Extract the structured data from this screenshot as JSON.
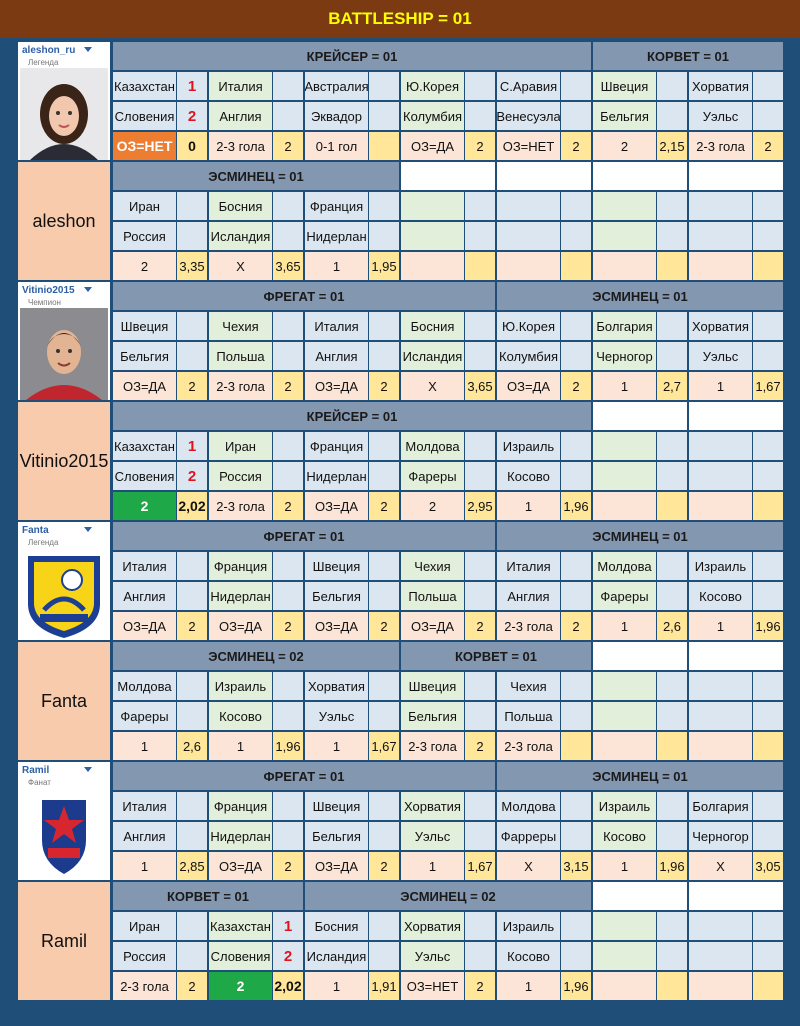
{
  "header": {
    "title": "BATTLESHIP = 01"
  },
  "players": [
    {
      "username": "aleshon_ru",
      "status": "Легенда",
      "name": "aleshon",
      "halves": [
        {
          "groups": [
            {
              "title": "КРЕЙСЕР = 01",
              "matches": [
                {
                  "home": "Казахстан",
                  "home_score": "1",
                  "away": "Словения",
                  "away_score": "2",
                  "bet": "ОЗ=НЕТ",
                  "odds": "0",
                  "bet_color": "#ed7d31"
                },
                {
                  "home": "Италия",
                  "away": "Англия",
                  "bet": "2-3 гола",
                  "odds": "2"
                },
                {
                  "home": "Австралия",
                  "away": "Эквадор",
                  "bet": "0-1 гол"
                },
                {
                  "home": "Ю.Корея",
                  "away": "Колумбия",
                  "bet": "ОЗ=ДА",
                  "odds": "2"
                },
                {
                  "home": "С.Аравия",
                  "away": "Венесуэла",
                  "bet": "ОЗ=НЕТ",
                  "odds": "2"
                }
              ]
            },
            {
              "title": "КОРВЕТ = 01",
              "matches": [
                {
                  "home": "Швеция",
                  "away": "Бельгия",
                  "bet": "2",
                  "odds": "2,15"
                },
                {
                  "home": "Хорватия",
                  "away": "Уэльс",
                  "bet": "2-3 гола",
                  "odds": "2"
                }
              ]
            }
          ]
        },
        {
          "groups": [
            {
              "title": "ЭСМИНЕЦ = 01",
              "matches": [
                {
                  "home": "Иран",
                  "away": "Россия",
                  "bet": "2",
                  "odds": "3,35"
                },
                {
                  "home": "Босния",
                  "away": "Исландия",
                  "bet": "X",
                  "odds": "3,65"
                },
                {
                  "home": "Франция",
                  "away": "Нидерлан",
                  "bet": "1",
                  "odds": "1,95"
                }
              ]
            }
          ]
        }
      ]
    },
    {
      "username": "Vitinio2015",
      "status": "Чемпион",
      "name": "Vitinio2015",
      "halves": [
        {
          "groups": [
            {
              "title": "ФРЕГАТ = 01",
              "matches": [
                {
                  "home": "Швеция",
                  "away": "Бельгия",
                  "bet": "ОЗ=ДА",
                  "odds": "2"
                },
                {
                  "home": "Чехия",
                  "away": "Польша",
                  "bet": "2-3 гола",
                  "odds": "2"
                },
                {
                  "home": "Италия",
                  "away": "Англия",
                  "bet": "ОЗ=ДА",
                  "odds": "2"
                },
                {
                  "home": "Босния",
                  "away": "Исландия",
                  "bet": "X",
                  "odds": "3,65"
                }
              ]
            },
            {
              "title": "ЭСМИНЕЦ = 01",
              "matches": [
                {
                  "home": "Ю.Корея",
                  "away": "Колумбия",
                  "bet": "ОЗ=ДА",
                  "odds": "2"
                },
                {
                  "home": "Болгария",
                  "away": "Черногор",
                  "bet": "1",
                  "odds": "2,7"
                },
                {
                  "home": "Хорватия",
                  "away": "Уэльс",
                  "bet": "1",
                  "odds": "1,67"
                }
              ]
            }
          ]
        },
        {
          "groups": [
            {
              "title": "КРЕЙСЕР = 01",
              "matches": [
                {
                  "home": "Казахстан",
                  "home_score": "1",
                  "away": "Словения",
                  "away_score": "2",
                  "bet": "2",
                  "odds": "2,02",
                  "bet_color": "#1fa847"
                },
                {
                  "home": "Иран",
                  "away": "Россия",
                  "bet": "2-3 гола",
                  "odds": "2"
                },
                {
                  "home": "Франция",
                  "away": "Нидерлан",
                  "bet": "ОЗ=ДА",
                  "odds": "2"
                },
                {
                  "home": "Молдова",
                  "away": "Фареры",
                  "bet": "2",
                  "odds": "2,95"
                },
                {
                  "home": "Израиль",
                  "away": "Косово",
                  "bet": "1",
                  "odds": "1,96"
                }
              ]
            }
          ]
        }
      ]
    },
    {
      "username": "Fanta",
      "status": "Легенда",
      "name": "Fanta",
      "halves": [
        {
          "groups": [
            {
              "title": "ФРЕГАТ = 01",
              "matches": [
                {
                  "home": "Италия",
                  "away": "Англия",
                  "bet": "ОЗ=ДА",
                  "odds": "2"
                },
                {
                  "home": "Франция",
                  "away": "Нидерлан",
                  "bet": "ОЗ=ДА",
                  "odds": "2"
                },
                {
                  "home": "Швеция",
                  "away": "Бельгия",
                  "bet": "ОЗ=ДА",
                  "odds": "2"
                },
                {
                  "home": "Чехия",
                  "away": "Польша",
                  "bet": "ОЗ=ДА",
                  "odds": "2"
                }
              ]
            },
            {
              "title": "ЭСМИНЕЦ = 01",
              "matches": [
                {
                  "home": "Италия",
                  "away": "Англия",
                  "bet": "2-3 гола",
                  "odds": "2"
                },
                {
                  "home": "Молдова",
                  "away": "Фареры",
                  "bet": "1",
                  "odds": "2,6"
                },
                {
                  "home": "Израиль",
                  "away": "Косово",
                  "bet": "1",
                  "odds": "1,96"
                }
              ]
            }
          ]
        },
        {
          "groups": [
            {
              "title": "ЭСМИНЕЦ = 02",
              "matches": [
                {
                  "home": "Молдова",
                  "away": "Фареры",
                  "bet": "1",
                  "odds": "2,6"
                },
                {
                  "home": "Израиль",
                  "away": "Косово",
                  "bet": "1",
                  "odds": "1,96"
                },
                {
                  "home": "Хорватия",
                  "away": "Уэльс",
                  "bet": "1",
                  "odds": "1,67"
                }
              ]
            },
            {
              "title": "КОРВЕТ = 01",
              "matches": [
                {
                  "home": "Швеция",
                  "away": "Бельгия",
                  "bet": "2-3 гола",
                  "odds": "2"
                },
                {
                  "home": "Чехия",
                  "away": "Польша",
                  "bet": "2-3 гола"
                }
              ]
            }
          ]
        }
      ]
    },
    {
      "username": "Ramil",
      "status": "Фанат",
      "name": "Ramil",
      "halves": [
        {
          "groups": [
            {
              "title": "ФРЕГАТ = 01",
              "matches": [
                {
                  "home": "Италия",
                  "away": "Англия",
                  "bet": "1",
                  "odds": "2,85"
                },
                {
                  "home": "Франция",
                  "away": "Нидерлан",
                  "bet": "ОЗ=ДА",
                  "odds": "2"
                },
                {
                  "home": "Швеция",
                  "away": "Бельгия",
                  "bet": "ОЗ=ДА",
                  "odds": "2"
                },
                {
                  "home": "Хорватия",
                  "away": "Уэльс",
                  "bet": "1",
                  "odds": "1,67"
                }
              ]
            },
            {
              "title": "ЭСМИНЕЦ = 01",
              "matches": [
                {
                  "home": "Молдова",
                  "away": "Фарреры",
                  "bet": "X",
                  "odds": "3,15"
                },
                {
                  "home": "Израиль",
                  "away": "Косово",
                  "bet": "1",
                  "odds": "1,96"
                },
                {
                  "home": "Болгария",
                  "away": "Черногор",
                  "bet": "X",
                  "odds": "3,05"
                }
              ]
            }
          ]
        },
        {
          "groups": [
            {
              "title": "КОРВЕТ = 01",
              "matches": [
                {
                  "home": "Иран",
                  "away": "Россия",
                  "bet": "2-3 гола",
                  "odds": "2"
                },
                {
                  "home": "Казахстан",
                  "home_score": "1",
                  "away": "Словения",
                  "away_score": "2",
                  "bet": "2",
                  "odds": "2,02",
                  "bet_color": "#1fa847"
                }
              ]
            },
            {
              "title": "ЭСМИНЕЦ = 02",
              "matches": [
                {
                  "home": "Босния",
                  "away": "Исландия",
                  "bet": "1",
                  "odds": "1,91"
                },
                {
                  "home": "Хорватия",
                  "away": "Уэльс",
                  "bet": "ОЗ=НЕТ",
                  "odds": "2"
                },
                {
                  "home": "Израиль",
                  "away": "Косово",
                  "bet": "1",
                  "odds": "1,96"
                }
              ]
            }
          ]
        }
      ]
    }
  ]
}
